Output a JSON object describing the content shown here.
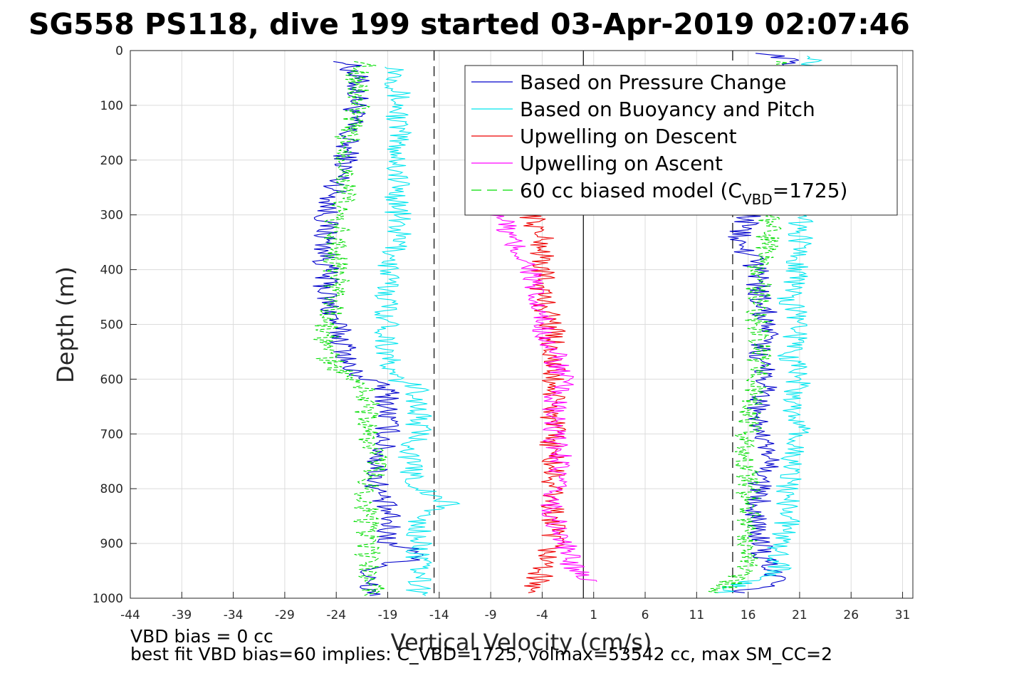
{
  "chart_data": {
    "type": "line",
    "title": "SG558 PS118, dive 199 started 03-Apr-2019 02:07:46",
    "xlabel": "Vertical Velocity (cm/s)",
    "ylabel": "Depth (m)",
    "xlim": [
      -44,
      32
    ],
    "ylim": [
      0,
      1000
    ],
    "y_reversed": true,
    "grid": true,
    "xticks": [
      -44,
      -39,
      -34,
      -29,
      -24,
      -19,
      -14,
      -9,
      -4,
      1,
      6,
      11,
      16,
      21,
      26,
      31
    ],
    "yticks": [
      0,
      100,
      200,
      300,
      400,
      500,
      600,
      700,
      800,
      900,
      1000
    ],
    "legend_position": "top-right",
    "legend": [
      {
        "label": "Based on Pressure Change",
        "color": "#0000cc",
        "style": "solid"
      },
      {
        "label": "Based on Buoyancy and Pitch",
        "color": "#00e5ee",
        "style": "solid"
      },
      {
        "label": "Upwelling on Descent",
        "color": "#ee0000",
        "style": "solid"
      },
      {
        "label": "Upwelling on Ascent",
        "color": "#ff00ff",
        "style": "solid"
      },
      {
        "label": "60 cc biased model (C",
        "sub": "VBD",
        "label_end": "=1725)",
        "color": "#00dd00",
        "style": "dashed"
      }
    ],
    "reference_lines": [
      {
        "x": -14.5,
        "style": "dashed",
        "color": "#000000"
      },
      {
        "x": 0,
        "style": "solid",
        "color": "#000000"
      },
      {
        "x": 14.5,
        "style": "dashed",
        "color": "#000000"
      }
    ],
    "series": [
      {
        "color": "#0000cc",
        "segments": [
          {
            "depth": [
              20,
              50,
              100,
              150,
              200,
              250,
              300,
              350,
              400,
              450,
              500,
              550,
              580,
              620,
              650,
              700,
              750,
              800,
              850,
              900,
              920,
              950,
              980,
              995
            ],
            "values": [
              -23,
              -22,
              -22,
              -23,
              -23,
              -24,
              -25,
              -25,
              -25,
              -25,
              -24,
              -23,
              -23,
              -19,
              -19,
              -19,
              -20,
              -20,
              -19,
              -19,
              -15,
              -21,
              -21,
              -20
            ]
          },
          {
            "depth": [
              5,
              20,
              50,
              100,
              150,
              200,
              250,
              300,
              350,
              400,
              450,
              500,
              550,
              600,
              650,
              700,
              750,
              800,
              850,
              900,
              950,
              970,
              990
            ],
            "values": [
              18,
              20,
              19,
              19,
              18,
              18,
              18,
              16,
              15,
              17,
              17,
              18,
              17,
              18,
              17,
              17,
              18,
              17,
              17,
              17,
              18,
              20,
              15
            ]
          }
        ]
      },
      {
        "color": "#00e5ee",
        "segments": [
          {
            "depth": [
              30,
              50,
              100,
              150,
              200,
              250,
              300,
              350,
              400,
              450,
              500,
              550,
              590,
              620,
              650,
              700,
              750,
              800,
              830,
              850,
              900,
              950,
              995
            ],
            "values": [
              -18,
              -18,
              -18,
              -18,
              -18,
              -18,
              -18,
              -18,
              -19,
              -19,
              -19,
              -19,
              -19,
              -16,
              -16,
              -16,
              -17,
              -16,
              -13,
              -16,
              -16,
              -16,
              -16
            ]
          },
          {
            "depth": [
              10,
              50,
              100,
              150,
              200,
              250,
              300,
              350,
              400,
              450,
              500,
              550,
              600,
              650,
              700,
              750,
              800,
              850,
              900,
              950,
              990
            ],
            "values": [
              23,
              21,
              21,
              21,
              21,
              21,
              21,
              21,
              21,
              20,
              21,
              20,
              21,
              20,
              21,
              20,
              20,
              20,
              19,
              19,
              13
            ]
          }
        ]
      },
      {
        "color": "#ee0000",
        "segments": [
          {
            "depth": [
              300,
              350,
              400,
              450,
              500,
              550,
              600,
              650,
              700,
              750,
              800,
              850,
              900,
              950,
              990
            ],
            "values": [
              -5,
              -4,
              -4,
              -4,
              -3,
              -3,
              -3,
              -3,
              -3,
              -3,
              -3,
              -3,
              -3,
              -4,
              -5
            ]
          }
        ]
      },
      {
        "color": "#ff00ff",
        "segments": [
          {
            "depth": [
              300,
              350,
              400,
              450,
              500,
              550,
              600,
              650,
              700,
              750,
              800,
              850,
              900,
              940,
              970
            ],
            "values": [
              -8,
              -7,
              -5,
              -5,
              -4,
              -3,
              -2,
              -3,
              -3,
              -2,
              -3,
              -3,
              -2,
              -1,
              1
            ]
          }
        ]
      },
      {
        "color": "#00dd00",
        "dashed": true,
        "segments": [
          {
            "depth": [
              20,
              50,
              100,
              150,
              200,
              250,
              300,
              350,
              400,
              450,
              500,
              550,
              580,
              620,
              650,
              700,
              750,
              800,
              850,
              900,
              950,
              995
            ],
            "values": [
              -21,
              -22,
              -22,
              -23,
              -23,
              -23,
              -24,
              -24,
              -24,
              -24,
              -25,
              -25,
              -24,
              -21,
              -21,
              -21,
              -20,
              -21,
              -21,
              -21,
              -21,
              -20
            ]
          },
          {
            "depth": [
              20,
              100,
              200,
              300,
              350,
              400,
              450,
              500,
              550,
              600,
              650,
              700,
              750,
              800,
              850,
              900,
              950,
              990
            ],
            "values": [
              20,
              20,
              19,
              18,
              18,
              17,
              17,
              17,
              17,
              17,
              16,
              16,
              16,
              16,
              16,
              16,
              16,
              13
            ]
          }
        ]
      }
    ],
    "annotations": [
      "VBD bias = 0 cc",
      "best fit VBD bias=60 implies: C_VBD=1725, volmax=53542 cc, max SM_CC=2"
    ]
  }
}
